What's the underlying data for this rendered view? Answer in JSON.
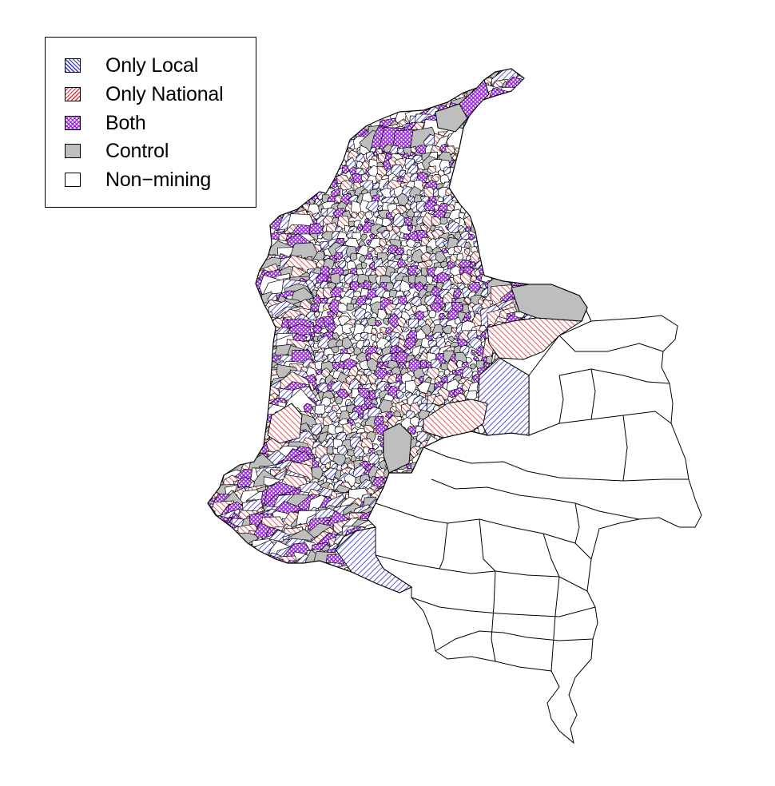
{
  "legend": {
    "items": [
      {
        "label": "Only Local",
        "category": "only-local",
        "color": "#2b2bd8"
      },
      {
        "label": "Only National",
        "category": "only-national",
        "color": "#e23232"
      },
      {
        "label": "Both",
        "category": "both",
        "color": "#9b1fe0"
      },
      {
        "label": "Control",
        "category": "control",
        "color": "#bebebe"
      },
      {
        "label": "Non−mining",
        "category": "non-mining",
        "color": "#ffffff"
      }
    ]
  }
}
